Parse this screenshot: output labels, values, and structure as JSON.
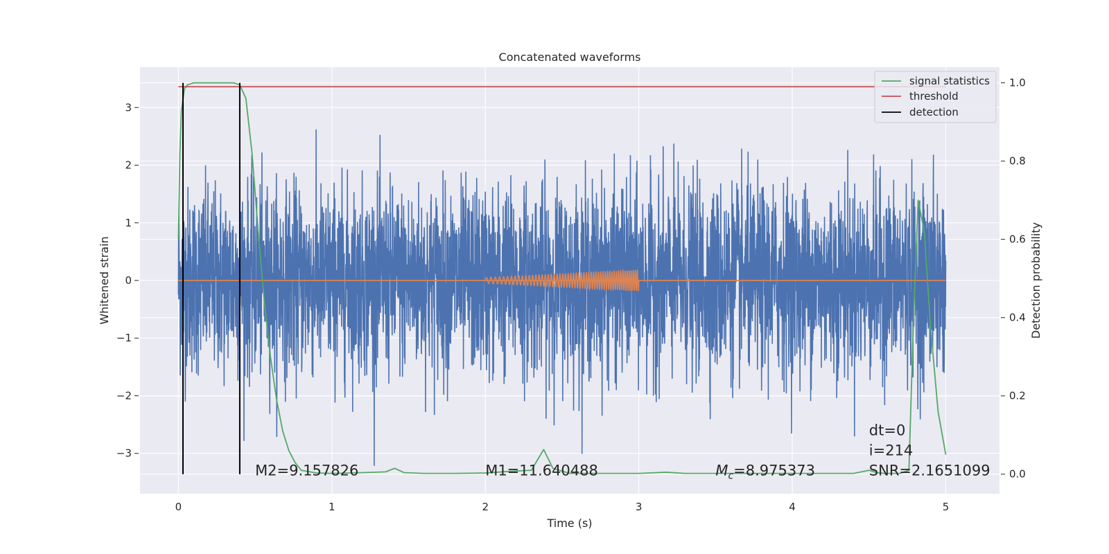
{
  "chart_data": {
    "type": "line",
    "title": "Concatenated waveforms",
    "xlabel": "Time (s)",
    "ylabel": "Whitened strain",
    "ylabel_right": "Detection probability",
    "xlim": [
      -0.25,
      5.35
    ],
    "ylim": [
      -3.7,
      3.7
    ],
    "ylim_right": [
      -0.05,
      1.04
    ],
    "x_ticks": [
      0,
      1,
      2,
      3,
      4,
      5
    ],
    "x_tick_labels": [
      "0",
      "1",
      "2",
      "3",
      "4",
      "5"
    ],
    "y_ticks": [
      -3,
      -2,
      -1,
      0,
      1,
      2,
      3
    ],
    "y_tick_labels": [
      "−3",
      "−2",
      "−1",
      "0",
      "1",
      "2",
      "3"
    ],
    "y_right_ticks": [
      0.0,
      0.2,
      0.4,
      0.6,
      0.8,
      1.0
    ],
    "y_right_tick_labels": [
      "0.0",
      "0.2",
      "0.4",
      "0.6",
      "0.8",
      "1.0"
    ],
    "grid": true,
    "legend_position": "top-right",
    "colors": {
      "strain": "#4c72b0",
      "waveform": "#dd8452",
      "signal_statistics": "#55a868",
      "threshold": "#c44e52",
      "detection": "#000000",
      "background": "#eaeaf2",
      "grid": "#ffffff"
    },
    "legend": [
      {
        "label": "signal statistics",
        "color": "#55a868"
      },
      {
        "label": "threshold",
        "color": "#c44e52"
      },
      {
        "label": "detection",
        "color": "#000000"
      }
    ],
    "threshold": 0.99,
    "detections": [
      0.03,
      0.4
    ],
    "signal_statistics": {
      "x": [
        0,
        0.01,
        0.02,
        0.04,
        0.06,
        0.1,
        0.2,
        0.3,
        0.36,
        0.4,
        0.44,
        0.48,
        0.52,
        0.56,
        0.6,
        0.64,
        0.68,
        0.72,
        0.76,
        0.8,
        0.9,
        1.0,
        1.2,
        1.35,
        1.41,
        1.47,
        1.6,
        1.8,
        2.0,
        2.15,
        2.3,
        2.38,
        2.44,
        2.55,
        2.7,
        3.0,
        3.18,
        3.3,
        3.6,
        4.0,
        4.4,
        4.5,
        4.55,
        4.6,
        4.7,
        4.76,
        4.79,
        4.82,
        4.86,
        4.9,
        4.95,
        5.0
      ],
      "y": [
        0.6,
        0.82,
        0.93,
        0.985,
        0.995,
        1.0,
        1.0,
        1.0,
        1.0,
        0.995,
        0.96,
        0.82,
        0.62,
        0.44,
        0.3,
        0.19,
        0.11,
        0.06,
        0.03,
        0.01,
        0.003,
        0.002,
        0.004,
        0.006,
        0.015,
        0.004,
        0.002,
        0.002,
        0.003,
        0.007,
        0.01,
        0.063,
        0.015,
        0.002,
        0.002,
        0.002,
        0.005,
        0.002,
        0.002,
        0.002,
        0.002,
        0.01,
        0.004,
        0.002,
        0.002,
        0.01,
        0.4,
        0.7,
        0.62,
        0.38,
        0.16,
        0.05
      ]
    },
    "strain_noise": {
      "x_start": 0,
      "x_end": 5,
      "samples": 4096,
      "band_sigma": 0.8,
      "max_abs": 3.4
    },
    "waveform": {
      "x_start": 2.0,
      "x_end": 3.0,
      "amplitude_start": 0.05,
      "amplitude_end": 0.18,
      "cycles": 55,
      "baseline": 0
    },
    "annotations": [
      {
        "text": "M2=9.157826",
        "x": 0.5,
        "y": -3.3
      },
      {
        "text": "M1=11.640488",
        "x": 2.0,
        "y": -3.3
      },
      {
        "text_prefix": "M",
        "text_sub": "c",
        "text_suffix": "=8.975373",
        "x": 3.5,
        "y": -3.3
      },
      {
        "text": "dt=0",
        "x": 4.5,
        "y": -2.6
      },
      {
        "text": "i=214",
        "x": 4.5,
        "y": -2.95
      },
      {
        "text": "SNR=2.1651099",
        "x": 4.5,
        "y": -3.3
      }
    ]
  }
}
